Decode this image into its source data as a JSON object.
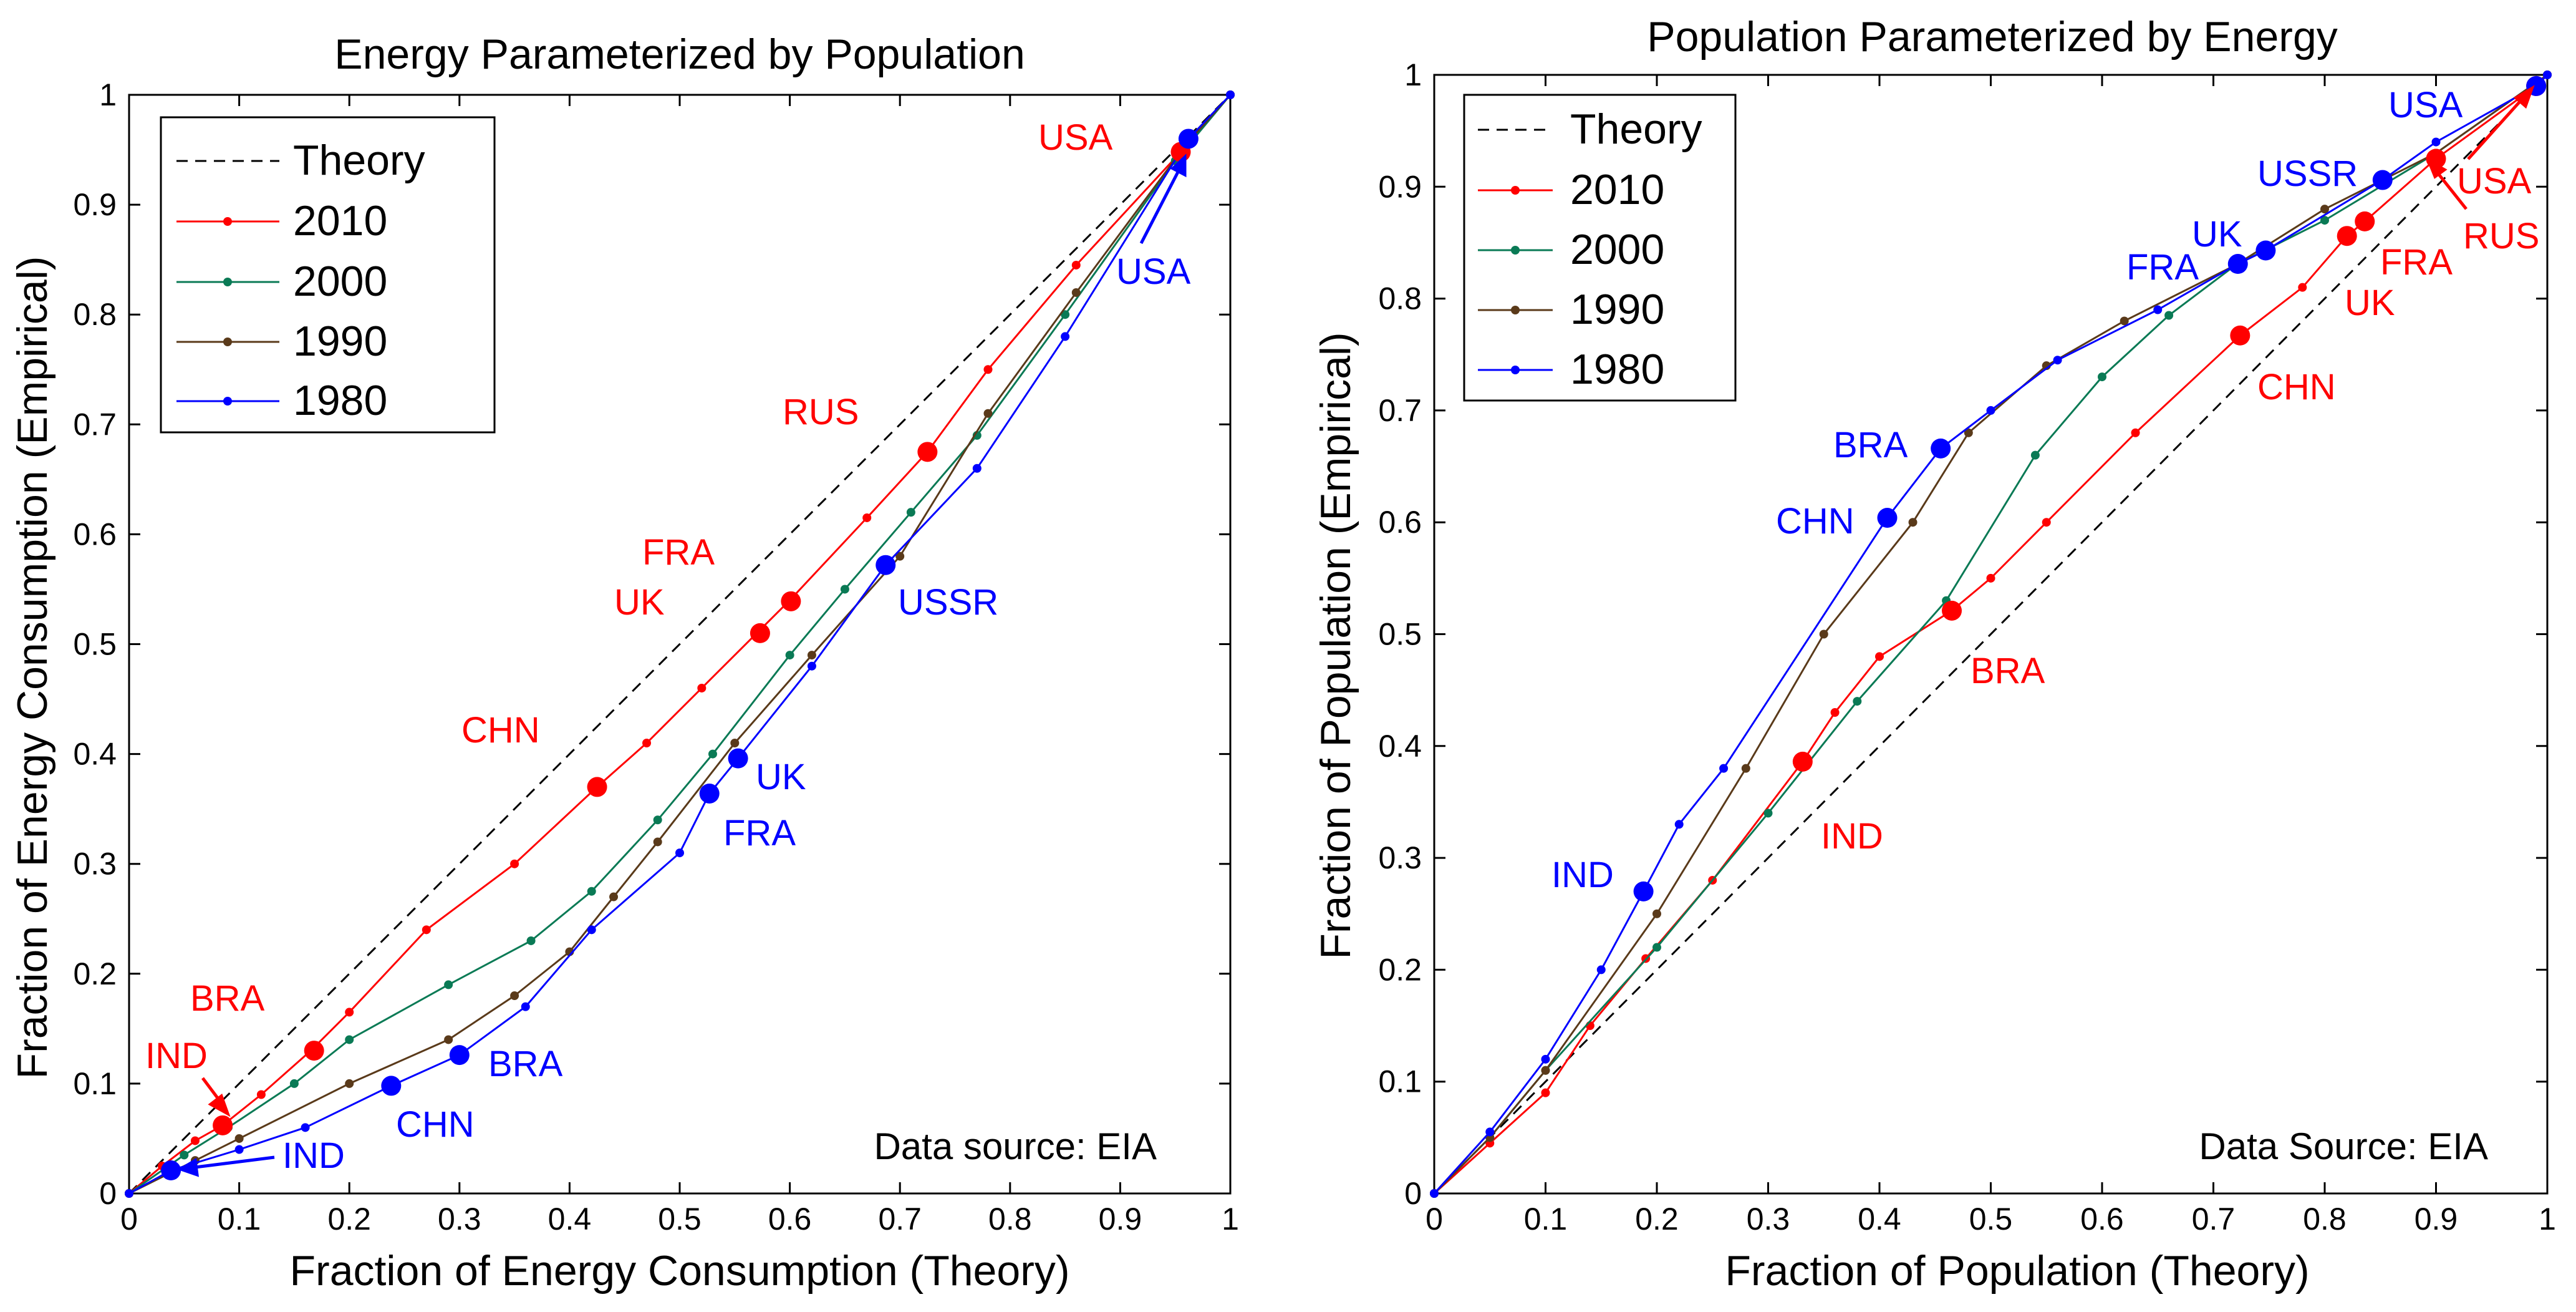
{
  "chart_data": [
    {
      "type": "line",
      "title": "Energy Parameterized by Population",
      "xlabel": "Fraction of Energy Consumption (Theory)",
      "ylabel": "Fraction of Energy Consumption (Empirical)",
      "xlim": [
        0,
        1
      ],
      "ylim": [
        0,
        1
      ],
      "xticks": [
        "0",
        "0.1",
        "0.2",
        "0.3",
        "0.4",
        "0.5",
        "0.6",
        "0.7",
        "0.8",
        "0.9",
        "1"
      ],
      "yticks": [
        "0",
        "0.1",
        "0.2",
        "0.3",
        "0.4",
        "0.5",
        "0.6",
        "0.7",
        "0.8",
        "0.9",
        "1"
      ],
      "legend_position": "top-left",
      "legend": [
        "Theory",
        "2010",
        "2000",
        "1990",
        "1980"
      ],
      "annotation": "Data source: EIA",
      "series": [
        {
          "name": "Theory",
          "color": "#000000",
          "dashed": true,
          "markers": false,
          "points": [
            [
              0,
              0
            ],
            [
              1,
              1
            ]
          ]
        },
        {
          "name": "2010",
          "color": "#ff0000",
          "points": [
            [
              0,
              0
            ],
            [
              0.03,
              0.025
            ],
            [
              0.06,
              0.048
            ],
            [
              0.085,
              0.062
            ],
            [
              0.12,
              0.09
            ],
            [
              0.165,
              0.13
            ],
            [
              0.2,
              0.165
            ],
            [
              0.27,
              0.24
            ],
            [
              0.35,
              0.3
            ],
            [
              0.425,
              0.37
            ],
            [
              0.47,
              0.41
            ],
            [
              0.52,
              0.46
            ],
            [
              0.57,
              0.51
            ],
            [
              0.6,
              0.54
            ],
            [
              0.67,
              0.615
            ],
            [
              0.725,
              0.675
            ],
            [
              0.78,
              0.75
            ],
            [
              0.86,
              0.845
            ],
            [
              0.955,
              0.948
            ],
            [
              1,
              1
            ]
          ]
        },
        {
          "name": "2000",
          "color": "#0a7a55",
          "points": [
            [
              0,
              0
            ],
            [
              0.05,
              0.035
            ],
            [
              0.09,
              0.06
            ],
            [
              0.15,
              0.1
            ],
            [
              0.2,
              0.14
            ],
            [
              0.29,
              0.19
            ],
            [
              0.365,
              0.23
            ],
            [
              0.42,
              0.275
            ],
            [
              0.48,
              0.34
            ],
            [
              0.53,
              0.4
            ],
            [
              0.6,
              0.49
            ],
            [
              0.65,
              0.55
            ],
            [
              0.71,
              0.62
            ],
            [
              0.77,
              0.69
            ],
            [
              0.85,
              0.8
            ],
            [
              0.95,
              0.94
            ],
            [
              1,
              1
            ]
          ]
        },
        {
          "name": "1990",
          "color": "#5a3a1a",
          "points": [
            [
              0,
              0
            ],
            [
              0.06,
              0.03
            ],
            [
              0.1,
              0.05
            ],
            [
              0.2,
              0.1
            ],
            [
              0.29,
              0.14
            ],
            [
              0.35,
              0.18
            ],
            [
              0.4,
              0.22
            ],
            [
              0.44,
              0.27
            ],
            [
              0.48,
              0.32
            ],
            [
              0.55,
              0.41
            ],
            [
              0.62,
              0.49
            ],
            [
              0.7,
              0.58
            ],
            [
              0.78,
              0.71
            ],
            [
              0.86,
              0.82
            ],
            [
              0.96,
              0.955
            ],
            [
              1,
              1
            ]
          ]
        },
        {
          "name": "1980",
          "color": "#0000ff",
          "points": [
            [
              0,
              0
            ],
            [
              0.038,
              0.021
            ],
            [
              0.1,
              0.04
            ],
            [
              0.16,
              0.06
            ],
            [
              0.238,
              0.098
            ],
            [
              0.3,
              0.126
            ],
            [
              0.36,
              0.17
            ],
            [
              0.42,
              0.24
            ],
            [
              0.5,
              0.31
            ],
            [
              0.527,
              0.364
            ],
            [
              0.553,
              0.396
            ],
            [
              0.62,
              0.48
            ],
            [
              0.687,
              0.572
            ],
            [
              0.77,
              0.66
            ],
            [
              0.85,
              0.78
            ],
            [
              0.962,
              0.96
            ],
            [
              1,
              1
            ]
          ]
        }
      ],
      "labelled_points": [
        {
          "label": "IND",
          "year": "2010",
          "x": 0.085,
          "y": 0.062
        },
        {
          "label": "BRA",
          "year": "2010",
          "x": 0.168,
          "y": 0.13
        },
        {
          "label": "CHN",
          "year": "2010",
          "x": 0.425,
          "y": 0.37
        },
        {
          "label": "UK",
          "year": "2010",
          "x": 0.573,
          "y": 0.51
        },
        {
          "label": "FRA",
          "year": "2010",
          "x": 0.601,
          "y": 0.539
        },
        {
          "label": "RUS",
          "year": "2010",
          "x": 0.725,
          "y": 0.675
        },
        {
          "label": "USA",
          "year": "2010",
          "x": 0.955,
          "y": 0.948
        },
        {
          "label": "IND",
          "year": "1980",
          "x": 0.038,
          "y": 0.021
        },
        {
          "label": "CHN",
          "year": "1980",
          "x": 0.238,
          "y": 0.098
        },
        {
          "label": "BRA",
          "year": "1980",
          "x": 0.3,
          "y": 0.126
        },
        {
          "label": "FRA",
          "year": "1980",
          "x": 0.527,
          "y": 0.364
        },
        {
          "label": "UK",
          "year": "1980",
          "x": 0.553,
          "y": 0.396
        },
        {
          "label": "USSR",
          "year": "1980",
          "x": 0.687,
          "y": 0.572
        },
        {
          "label": "USA",
          "year": "1980",
          "x": 0.962,
          "y": 0.96
        }
      ]
    },
    {
      "type": "line",
      "title": "Population Parameterized by Energy",
      "xlabel": "Fraction of Population (Theory)",
      "ylabel": "Fraction of Population (Empirical)",
      "xlim": [
        0,
        1
      ],
      "ylim": [
        0,
        1
      ],
      "xticks": [
        "0",
        "0.1",
        "0.2",
        "0.3",
        "0.4",
        "0.5",
        "0.6",
        "0.7",
        "0.8",
        "0.9",
        "1"
      ],
      "yticks": [
        "0",
        "0.1",
        "0.2",
        "0.3",
        "0.4",
        "0.5",
        "0.6",
        "0.7",
        "0.8",
        "0.9",
        "1"
      ],
      "legend_position": "top-left",
      "legend": [
        "Theory",
        "2010",
        "2000",
        "1990",
        "1980"
      ],
      "annotation": "Data Source: EIA",
      "series": [
        {
          "name": "Theory",
          "color": "#000000",
          "dashed": true,
          "markers": false,
          "points": [
            [
              0,
              0
            ],
            [
              1,
              1
            ]
          ]
        },
        {
          "name": "2010",
          "color": "#ff0000",
          "points": [
            [
              0,
              0
            ],
            [
              0.05,
              0.045
            ],
            [
              0.1,
              0.09
            ],
            [
              0.14,
              0.15
            ],
            [
              0.19,
              0.21
            ],
            [
              0.25,
              0.28
            ],
            [
              0.331,
              0.386
            ],
            [
              0.36,
              0.43
            ],
            [
              0.4,
              0.48
            ],
            [
              0.465,
              0.521
            ],
            [
              0.5,
              0.55
            ],
            [
              0.55,
              0.6
            ],
            [
              0.63,
              0.68
            ],
            [
              0.724,
              0.767
            ],
            [
              0.78,
              0.81
            ],
            [
              0.82,
              0.856
            ],
            [
              0.836,
              0.869
            ],
            [
              0.9,
              0.925
            ],
            [
              0.99,
              0.99
            ],
            [
              1,
              1
            ]
          ]
        },
        {
          "name": "2000",
          "color": "#0a7a55",
          "points": [
            [
              0,
              0
            ],
            [
              0.05,
              0.05
            ],
            [
              0.1,
              0.11
            ],
            [
              0.2,
              0.22
            ],
            [
              0.3,
              0.34
            ],
            [
              0.38,
              0.44
            ],
            [
              0.46,
              0.53
            ],
            [
              0.54,
              0.66
            ],
            [
              0.6,
              0.73
            ],
            [
              0.66,
              0.785
            ],
            [
              0.72,
              0.83
            ],
            [
              0.8,
              0.87
            ],
            [
              0.9,
              0.93
            ],
            [
              1,
              1
            ]
          ]
        },
        {
          "name": "1990",
          "color": "#5a3a1a",
          "points": [
            [
              0,
              0
            ],
            [
              0.05,
              0.05
            ],
            [
              0.1,
              0.11
            ],
            [
              0.2,
              0.25
            ],
            [
              0.28,
              0.38
            ],
            [
              0.35,
              0.5
            ],
            [
              0.43,
              0.6
            ],
            [
              0.48,
              0.68
            ],
            [
              0.55,
              0.74
            ],
            [
              0.62,
              0.78
            ],
            [
              0.72,
              0.83
            ],
            [
              0.8,
              0.88
            ],
            [
              0.9,
              0.93
            ],
            [
              1,
              1
            ]
          ]
        },
        {
          "name": "1980",
          "color": "#0000ff",
          "points": [
            [
              0,
              0
            ],
            [
              0.05,
              0.055
            ],
            [
              0.1,
              0.12
            ],
            [
              0.15,
              0.2
            ],
            [
              0.188,
              0.27
            ],
            [
              0.22,
              0.33
            ],
            [
              0.26,
              0.38
            ],
            [
              0.407,
              0.604
            ],
            [
              0.455,
              0.666
            ],
            [
              0.5,
              0.7
            ],
            [
              0.56,
              0.745
            ],
            [
              0.65,
              0.79
            ],
            [
              0.722,
              0.831
            ],
            [
              0.747,
              0.843
            ],
            [
              0.852,
              0.906
            ],
            [
              0.9,
              0.94
            ],
            [
              0.99,
              0.99
            ],
            [
              1,
              1
            ]
          ]
        }
      ],
      "labelled_points": [
        {
          "label": "IND",
          "year": "2010",
          "x": 0.331,
          "y": 0.386
        },
        {
          "label": "BRA",
          "year": "2010",
          "x": 0.465,
          "y": 0.521
        },
        {
          "label": "CHN",
          "year": "2010",
          "x": 0.724,
          "y": 0.767
        },
        {
          "label": "UK",
          "year": "2010",
          "x": 0.82,
          "y": 0.856
        },
        {
          "label": "FRA",
          "year": "2010",
          "x": 0.836,
          "y": 0.869
        },
        {
          "label": "RUS",
          "year": "2010",
          "x": 0.9,
          "y": 0.925
        },
        {
          "label": "USA",
          "year": "2010",
          "x": 0.99,
          "y": 0.99
        },
        {
          "label": "IND",
          "year": "1980",
          "x": 0.188,
          "y": 0.27
        },
        {
          "label": "CHN",
          "year": "1980",
          "x": 0.407,
          "y": 0.604
        },
        {
          "label": "BRA",
          "year": "1980",
          "x": 0.455,
          "y": 0.666
        },
        {
          "label": "FRA",
          "year": "1980",
          "x": 0.722,
          "y": 0.831
        },
        {
          "label": "UK",
          "year": "1980",
          "x": 0.747,
          "y": 0.843
        },
        {
          "label": "USSR",
          "year": "1980",
          "x": 0.852,
          "y": 0.906
        },
        {
          "label": "USA",
          "year": "1980",
          "x": 0.99,
          "y": 0.99
        }
      ]
    }
  ]
}
